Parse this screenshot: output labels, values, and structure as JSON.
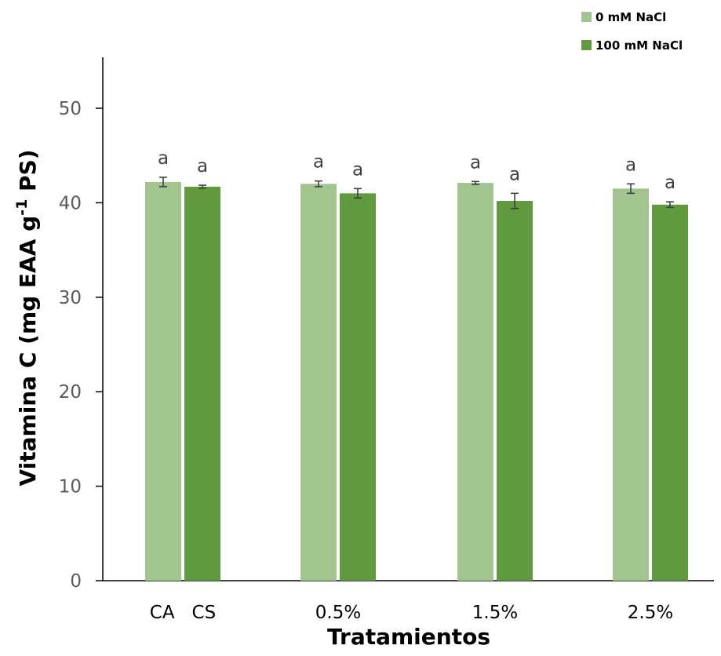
{
  "chart_data": {
    "type": "bar",
    "title": "",
    "xlabel": "Tratamientos",
    "ylabel": "Vitamina C (mg EAA g",
    "ylabel_superscript": "-1",
    "ylabel_suffix": " PS)",
    "ylim": [
      0,
      55
    ],
    "yticks": [
      0,
      10,
      20,
      30,
      40,
      50
    ],
    "categories": [
      "CA   CS",
      "0.5%",
      "1.5%",
      "2.5%"
    ],
    "legend_position": "top-right",
    "grid": false,
    "series": [
      {
        "name": "0 mM NaCl",
        "color": "#a2c48f",
        "values": [
          42.2,
          42.0,
          42.1,
          41.5
        ],
        "errors": [
          0.5,
          0.3,
          0.15,
          0.5
        ],
        "labels": [
          "a",
          "a",
          "a",
          "a"
        ]
      },
      {
        "name": "100 mM NaCl",
        "color": "#619a3e",
        "values": [
          41.7,
          41.0,
          40.2,
          39.8
        ],
        "errors": [
          0.15,
          0.5,
          0.8,
          0.3
        ],
        "labels": [
          "a",
          "a",
          "a",
          "a"
        ]
      }
    ]
  }
}
